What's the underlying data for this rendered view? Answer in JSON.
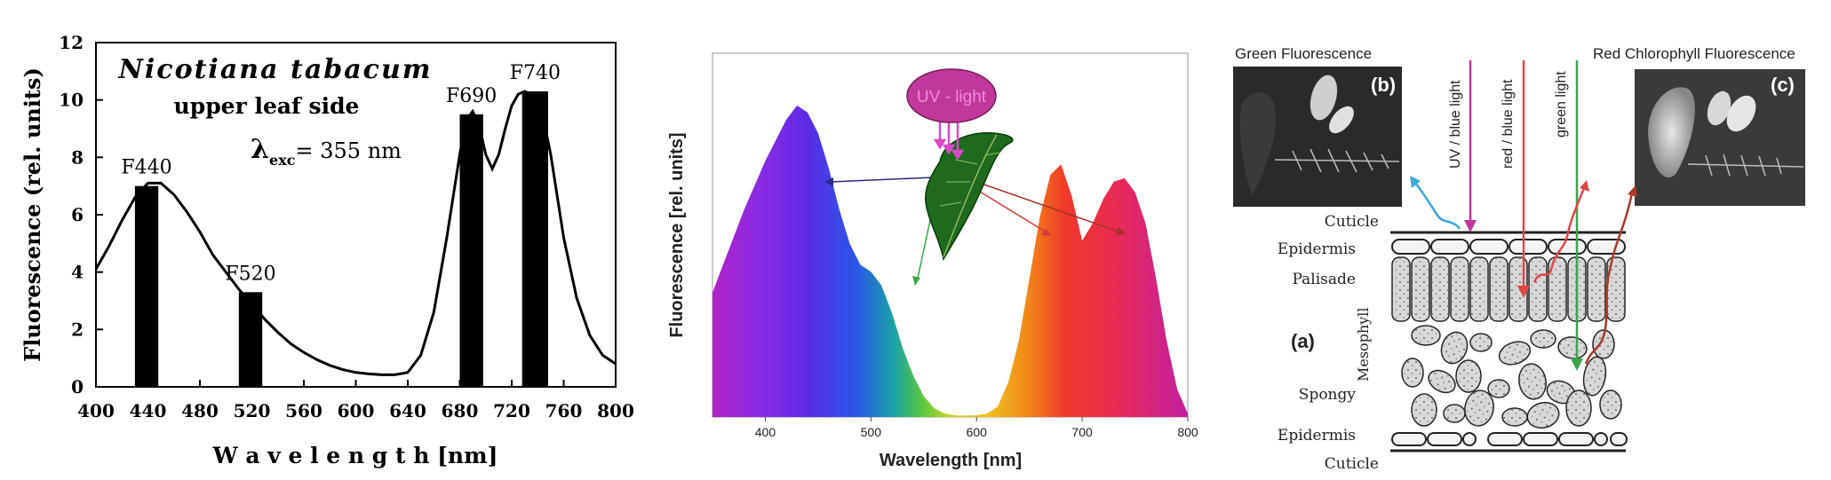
{
  "chart_data": [
    {
      "type": "line",
      "title": "Nicotiana tabacum",
      "subtitle": "upper leaf side",
      "annotation": {
        "symbol": "λ",
        "sub": "exc",
        "text": "= 355 nm"
      },
      "xlabel": "W a v e l e n g t h  [nm]",
      "ylabel": "Fluorescence (rel. units)",
      "xlim": [
        400,
        800
      ],
      "ylim": [
        0,
        12
      ],
      "xticks": [
        "400",
        "440",
        "480",
        "520",
        "560",
        "600",
        "640",
        "680",
        "720",
        "760",
        "800"
      ],
      "yticks": [
        "0",
        "2",
        "4",
        "6",
        "8",
        "10",
        "12"
      ],
      "x": [
        400,
        410,
        420,
        430,
        440,
        450,
        460,
        470,
        480,
        490,
        500,
        510,
        520,
        530,
        540,
        550,
        560,
        570,
        580,
        590,
        600,
        610,
        620,
        630,
        640,
        650,
        660,
        670,
        680,
        685,
        690,
        695,
        700,
        705,
        710,
        715,
        720,
        725,
        730,
        735,
        740,
        745,
        750,
        760,
        770,
        780,
        790,
        800
      ],
      "y": [
        4.1,
        4.9,
        5.8,
        6.6,
        7.1,
        7.1,
        6.7,
        6.1,
        5.4,
        4.6,
        4.0,
        3.4,
        2.9,
        2.35,
        1.9,
        1.5,
        1.2,
        0.95,
        0.75,
        0.6,
        0.5,
        0.45,
        0.42,
        0.42,
        0.5,
        1.1,
        2.6,
        5.2,
        8.1,
        9.3,
        9.6,
        9.1,
        8.1,
        7.6,
        8.1,
        9.0,
        9.8,
        10.2,
        10.3,
        10.2,
        9.9,
        9.2,
        8.1,
        5.2,
        3.1,
        1.8,
        1.1,
        0.8
      ],
      "bands": [
        {
          "name": "F440",
          "from": 430,
          "to": 448,
          "peak": 7.0
        },
        {
          "name": "F520",
          "from": 510,
          "to": 528,
          "peak": 3.3
        },
        {
          "name": "F690",
          "from": 680,
          "to": 698,
          "peak": 9.5
        },
        {
          "name": "F740",
          "from": 728,
          "to": 748,
          "peak": 10.3
        }
      ]
    },
    {
      "type": "area",
      "title": "",
      "xlabel": "Wavelength [nm]",
      "ylabel": "Fluorescence [rel. units]",
      "xlim": [
        350,
        800
      ],
      "ylim": [
        0,
        1
      ],
      "xticks": [
        "400",
        "500",
        "600",
        "700",
        "800"
      ],
      "x": [
        350,
        360,
        370,
        380,
        390,
        400,
        410,
        420,
        430,
        440,
        450,
        460,
        470,
        480,
        490,
        500,
        510,
        520,
        530,
        540,
        550,
        560,
        570,
        580,
        590,
        600,
        610,
        620,
        630,
        640,
        650,
        660,
        670,
        680,
        690,
        700,
        710,
        720,
        730,
        740,
        750,
        760,
        770,
        780,
        790,
        800
      ],
      "y": [
        0.36,
        0.44,
        0.52,
        0.6,
        0.67,
        0.74,
        0.8,
        0.86,
        0.9,
        0.88,
        0.82,
        0.72,
        0.6,
        0.5,
        0.44,
        0.42,
        0.38,
        0.3,
        0.2,
        0.12,
        0.06,
        0.025,
        0.01,
        0.005,
        0.004,
        0.005,
        0.01,
        0.03,
        0.1,
        0.22,
        0.4,
        0.58,
        0.7,
        0.73,
        0.64,
        0.51,
        0.56,
        0.63,
        0.68,
        0.69,
        0.65,
        0.56,
        0.4,
        0.22,
        0.08,
        0.01
      ],
      "annotation": "UV - light"
    }
  ],
  "diagram": {
    "title_left": "Green Fluorescence",
    "title_right": "Red Chlorophyll Fluorescence",
    "label_b": "(b)",
    "label_c": "(c)",
    "label_a": "(a)",
    "arrows": [
      "UV / blue light",
      "red / blue light",
      "green light"
    ],
    "layers": {
      "cuticle_top": "Cuticle",
      "epidermis_top": "Epidermis",
      "palisade": "Palisade",
      "mesophyll": "Mesophyll",
      "spongy": "Spongy",
      "epidermis_bottom": "Epidermis",
      "cuticle_bottom": "Cuticle"
    },
    "colors": {
      "uv": "#c0389a",
      "red": "#e04848",
      "green": "#3aa64a",
      "cyan": "#3aa8d8",
      "darkred": "#a83a2a"
    }
  }
}
